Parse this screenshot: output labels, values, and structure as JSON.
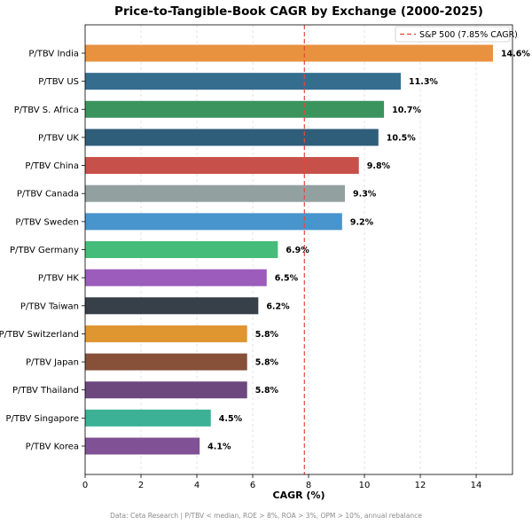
{
  "chart_data": {
    "type": "bar",
    "orientation": "horizontal",
    "title": "Price-to-Tangible-Book CAGR by Exchange (2000-2025)",
    "xlabel": "CAGR (%)",
    "ylabel": "",
    "xlim": [
      0,
      15.3
    ],
    "xticks": [
      0,
      2,
      4,
      6,
      8,
      10,
      12,
      14
    ],
    "grid": "vertical dashed",
    "categories": [
      "P/TBV India",
      "P/TBV US",
      "P/TBV S. Africa",
      "P/TBV UK",
      "P/TBV China",
      "P/TBV Canada",
      "P/TBV Sweden",
      "P/TBV Germany",
      "P/TBV HK",
      "P/TBV Taiwan",
      "P/TBV Switzerland",
      "P/TBV Japan",
      "P/TBV Thailand",
      "P/TBV Singapore",
      "P/TBV Korea"
    ],
    "values": [
      14.6,
      11.3,
      10.7,
      10.5,
      9.8,
      9.3,
      9.2,
      6.9,
      6.5,
      6.2,
      5.8,
      5.8,
      5.8,
      4.5,
      4.1
    ],
    "value_labels": [
      "14.6%",
      "11.3%",
      "10.7%",
      "10.5%",
      "9.8%",
      "9.3%",
      "9.2%",
      "6.9%",
      "6.5%",
      "6.2%",
      "5.8%",
      "5.8%",
      "5.8%",
      "4.5%",
      "4.1%"
    ],
    "colors": [
      "#e8913f",
      "#356d8f",
      "#3b945e",
      "#2f5e7a",
      "#c8504a",
      "#93a0a0",
      "#4894cc",
      "#45bc7a",
      "#9b5cbb",
      "#373f48",
      "#df9630",
      "#865039",
      "#6c487f",
      "#3cb195",
      "#805195"
    ],
    "reference_line": {
      "value": 7.85,
      "label": "S&P 500 (7.85% CAGR)",
      "color": "#e24a3b",
      "style": "dashed"
    },
    "legend": "top-right",
    "footnote": "Data: Ceta Research | P/TBV < median, ROE > 8%, ROA > 3%, OPM > 10%, annual rebalance"
  }
}
